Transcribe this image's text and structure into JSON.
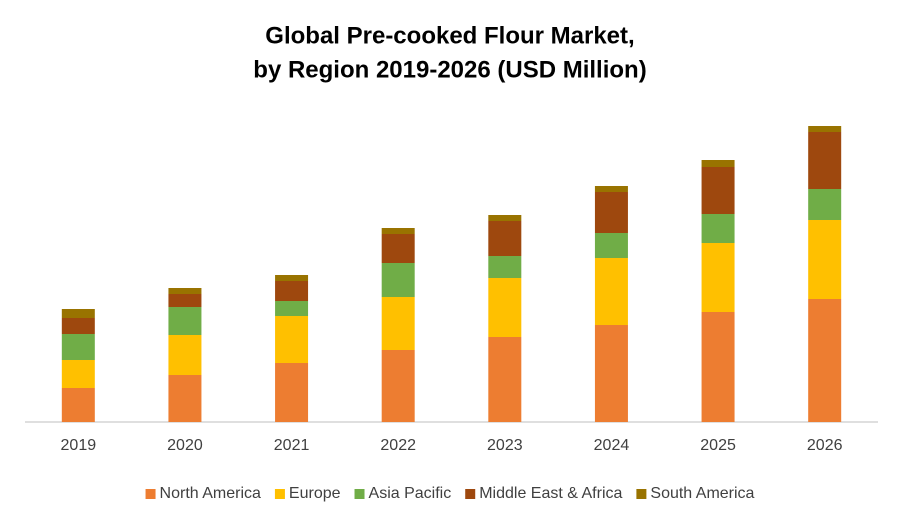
{
  "chart_data": {
    "type": "stacked-bar",
    "title": [
      "Global Pre-cooked Flour Market,",
      "by Region 2019-2026 (USD Million)"
    ],
    "categories": [
      "2019",
      "2020",
      "2021",
      "2022",
      "2023",
      "2024",
      "2025",
      "2026"
    ],
    "series": [
      {
        "name": "North America",
        "color": "#ed7d31",
        "values": [
          34,
          47,
          59,
          72,
          85,
          97,
          110,
          123
        ]
      },
      {
        "name": "Europe",
        "color": "#ffc000",
        "values": [
          28,
          40,
          47,
          53,
          59,
          67,
          69,
          79
        ]
      },
      {
        "name": "Asia Pacific",
        "color": "#70ad47",
        "values": [
          26,
          28,
          15,
          34,
          22,
          25,
          29,
          31
        ]
      },
      {
        "name": "Middle East & Africa",
        "color": "#9e480e",
        "values": [
          16,
          13,
          20,
          29,
          35,
          41,
          47,
          57
        ]
      },
      {
        "name": "South America",
        "color": "#997300",
        "values": [
          9,
          6,
          6,
          6,
          6,
          6,
          7,
          6
        ]
      }
    ],
    "ylim": [
      0,
      300
    ],
    "legend": "bottom"
  }
}
